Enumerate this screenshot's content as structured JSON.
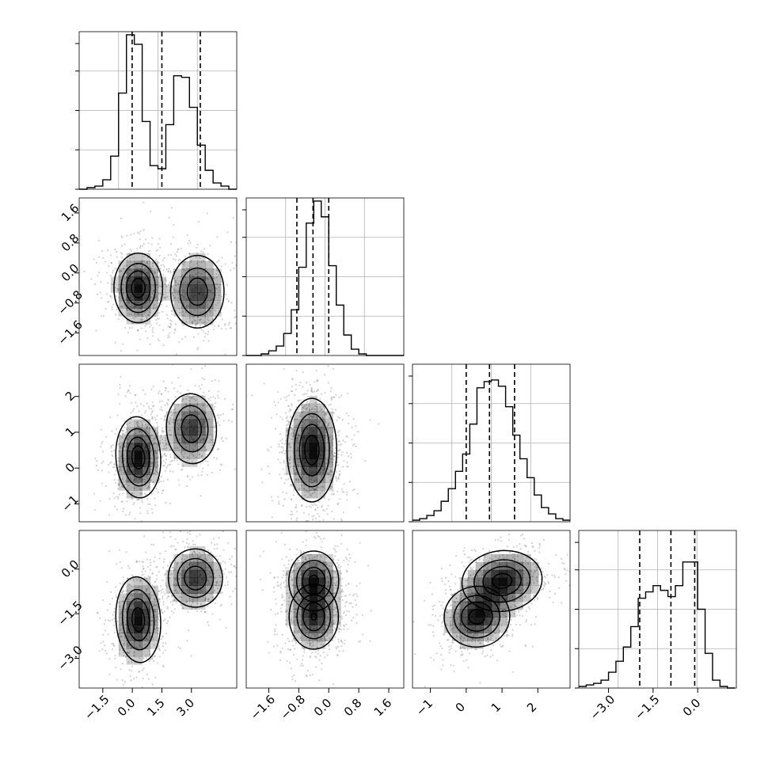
{
  "figure": {
    "type": "corner plot",
    "colors": {
      "line": "#000000",
      "grid": "#b0b0b0",
      "scatter": "#7f7f7f",
      "density": "#000000",
      "background": "#ffffff"
    }
  },
  "chart_data": [
    {
      "type": "histogram",
      "panel": "1-1",
      "variable": 1,
      "xlim": [
        -2.7,
        5.3
      ],
      "ylim": [
        0,
        100
      ],
      "bin_edges": [
        -2.7,
        -2.3,
        -1.9,
        -1.5,
        -1.1,
        -0.7,
        -0.3,
        0.1,
        0.5,
        0.9,
        1.3,
        1.7,
        2.1,
        2.5,
        2.9,
        3.3,
        3.7,
        4.1,
        4.5,
        4.9,
        5.3
      ],
      "counts": [
        0,
        1,
        2,
        6,
        21,
        61,
        98,
        92,
        43,
        15,
        13,
        41,
        72,
        71,
        52,
        28,
        12,
        4,
        2,
        0
      ],
      "quantiles": [
        -0.01,
        1.5,
        3.45
      ],
      "grid": true
    },
    {
      "type": "histogram",
      "panel": "2-2",
      "variable": 2,
      "xlim": [
        -2.2,
        2.0
      ],
      "ylim": [
        0,
        100
      ],
      "bin_edges": [
        -2.2,
        -2.0,
        -1.8,
        -1.6,
        -1.4,
        -1.2,
        -1.0,
        -0.8,
        -0.6,
        -0.4,
        -0.2,
        0.0,
        0.2,
        0.4,
        0.6,
        0.8,
        1.0,
        1.2,
        1.4,
        1.6,
        1.8,
        2.0
      ],
      "counts": [
        0,
        0,
        1,
        3,
        6,
        14,
        29,
        56,
        84,
        98,
        88,
        57,
        32,
        13,
        4,
        1,
        0,
        0,
        0,
        0,
        0
      ],
      "quantiles": [
        -0.85,
        -0.42,
        0.0
      ],
      "grid": true
    },
    {
      "type": "histogram",
      "panel": "3-3",
      "variable": 3,
      "xlim": [
        -1.5,
        2.9
      ],
      "ylim": [
        0,
        100
      ],
      "bin_edges": [
        -1.5,
        -1.3,
        -1.1,
        -0.9,
        -0.7,
        -0.5,
        -0.3,
        -0.1,
        0.1,
        0.3,
        0.5,
        0.7,
        0.9,
        1.1,
        1.3,
        1.5,
        1.7,
        1.9,
        2.1,
        2.3,
        2.5,
        2.7,
        2.9
      ],
      "counts": [
        1,
        2,
        4,
        7,
        13,
        21,
        32,
        43,
        62,
        85,
        89,
        90,
        86,
        73,
        55,
        40,
        28,
        17,
        9,
        5,
        2,
        1
      ],
      "quantiles": [
        0.0,
        0.65,
        1.35
      ],
      "grid": true
    },
    {
      "type": "histogram",
      "panel": "4-4",
      "variable": 4,
      "xlim": [
        -4.0,
        1.3
      ],
      "ylim": [
        0,
        100
      ],
      "bin_edges": [
        -4.0,
        -3.75,
        -3.5,
        -3.25,
        -3.0,
        -2.75,
        -2.5,
        -2.25,
        -2.0,
        -1.75,
        -1.5,
        -1.25,
        -1.0,
        -0.75,
        -0.5,
        -0.25,
        0.0,
        0.25,
        0.5,
        0.75,
        1.0,
        1.25
      ],
      "counts": [
        1,
        2,
        3,
        5,
        10,
        17,
        26,
        39,
        57,
        61,
        65,
        62,
        58,
        65,
        80,
        80,
        50,
        22,
        5,
        1,
        0
      ],
      "quantiles": [
        -1.95,
        -0.9,
        -0.1
      ],
      "grid": true
    },
    {
      "type": "contour-density",
      "panel": "2-1",
      "x_variable": 1,
      "y_variable": 2,
      "xlim": [
        -2.7,
        5.3
      ],
      "ylim": [
        -2.2,
        2.0
      ],
      "ticks_y": [
        "1.6",
        "0.8",
        "0.0",
        "−0.8",
        "−1.6"
      ],
      "modes": [
        {
          "x": 0.3,
          "y": -0.4,
          "sx": 0.6,
          "sy": 0.45,
          "r": 0,
          "w": 1
        },
        {
          "x": 3.3,
          "y": -0.5,
          "sx": 0.7,
          "sy": 0.5,
          "r": 0,
          "w": 0.78
        }
      ]
    },
    {
      "type": "contour-density",
      "panel": "3-1",
      "x_variable": 1,
      "y_variable": 3,
      "xlim": [
        -2.7,
        5.3
      ],
      "ylim": [
        -1.5,
        2.9
      ],
      "ticks_y": [
        "2",
        "1",
        "0",
        "−1"
      ],
      "modes": [
        {
          "x": 0.3,
          "y": 0.3,
          "sx": 0.55,
          "sy": 0.55,
          "r": 0.1,
          "w": 1
        },
        {
          "x": 3.0,
          "y": 1.1,
          "sx": 0.65,
          "sy": 0.5,
          "r": 0.1,
          "w": 0.8
        }
      ]
    },
    {
      "type": "contour-density",
      "panel": "3-2",
      "x_variable": 2,
      "y_variable": 3,
      "xlim": [
        -2.2,
        2.0
      ],
      "ylim": [
        -1.5,
        2.9
      ],
      "modes": [
        {
          "x": -0.45,
          "y": 0.5,
          "sx": 0.32,
          "sy": 0.7,
          "r": 0,
          "w": 1
        }
      ]
    },
    {
      "type": "contour-density",
      "panel": "4-1",
      "x_variable": 1,
      "y_variable": 4,
      "xlim": [
        -2.7,
        5.3
      ],
      "ylim": [
        -4.0,
        1.3
      ],
      "ticks_y": [
        "0.0",
        "−1.5",
        "−3.0"
      ],
      "ticks_x": [
        "−1.5",
        "0.0",
        "1.5",
        "3.0"
      ],
      "modes": [
        {
          "x": 0.3,
          "y": -1.7,
          "sx": 0.55,
          "sy": 0.7,
          "r": 0.1,
          "w": 1
        },
        {
          "x": 3.2,
          "y": -0.3,
          "sx": 0.7,
          "sy": 0.5,
          "r": 0.1,
          "w": 0.82
        }
      ]
    },
    {
      "type": "contour-density",
      "panel": "4-2",
      "x_variable": 2,
      "y_variable": 4,
      "xlim": [
        -2.2,
        2.0
      ],
      "ylim": [
        -4.0,
        1.3
      ],
      "ticks_x": [
        "−1.6",
        "−0.8",
        "0.0",
        "0.8",
        "1.6"
      ],
      "modes": [
        {
          "x": -0.4,
          "y": -0.4,
          "sx": 0.33,
          "sy": 0.5,
          "r": 0,
          "w": 1
        },
        {
          "x": -0.4,
          "y": -1.6,
          "sx": 0.33,
          "sy": 0.55,
          "r": 0,
          "w": 0.95
        }
      ]
    },
    {
      "type": "contour-density",
      "panel": "4-3",
      "x_variable": 3,
      "y_variable": 4,
      "xlim": [
        -1.5,
        2.9
      ],
      "ylim": [
        -4.0,
        1.3
      ],
      "ticks_x": [
        "−1",
        "0",
        "1",
        "2"
      ],
      "modes": [
        {
          "x": 0.3,
          "y": -1.6,
          "sx": 0.45,
          "sy": 0.5,
          "r": 0.2,
          "w": 1
        },
        {
          "x": 1.0,
          "y": -0.4,
          "sx": 0.55,
          "sy": 0.5,
          "r": 0.2,
          "w": 1
        }
      ]
    }
  ]
}
